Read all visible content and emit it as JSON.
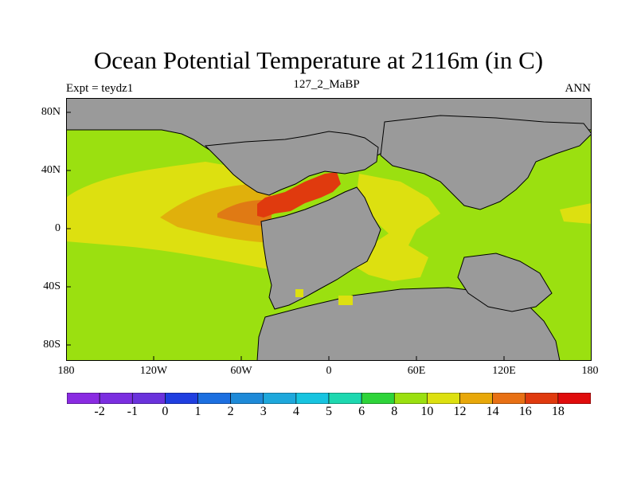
{
  "title": "Ocean Potential Temperature at 2116m (in C)",
  "subtitle_left": "Expt = teydz1",
  "subtitle_center": "127_2_MaBP",
  "subtitle_right": "ANN",
  "lat_labels": [
    "80N",
    "40N",
    "0",
    "40S",
    "80S"
  ],
  "lon_labels": [
    "180",
    "120W",
    "60W",
    "0",
    "60E",
    "120E",
    "180"
  ],
  "colorbar": {
    "colors": [
      "#8a2be2",
      "#7b2ee0",
      "#6a32dc",
      "#1f3ee0",
      "#1c6fe0",
      "#1e8ad8",
      "#1ea8dc",
      "#17c4e0",
      "#1dd8b0",
      "#2ed43a",
      "#9be010",
      "#dde010",
      "#e8a80a",
      "#e87014",
      "#e03a0e",
      "#e00c0c"
    ],
    "labels": [
      "-2",
      "-1",
      "0",
      "1",
      "2",
      "3",
      "4",
      "5",
      "6",
      "8",
      "10",
      "12",
      "14",
      "16",
      "18"
    ]
  },
  "map_colors": {
    "land": "#9a9a9a",
    "t8_10": "#9be010",
    "t10_12": "#dde010",
    "t12_14": "#e0b00c",
    "t14_16": "#e07a14",
    "t16_18": "#e03a0e",
    "outline": "#000000"
  }
}
